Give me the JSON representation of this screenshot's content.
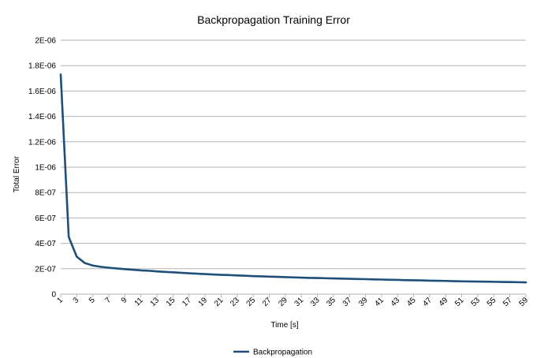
{
  "chart_data": {
    "type": "line",
    "title": "Backpropagation Training Error",
    "xlabel": "Time [s]",
    "ylabel": "Total Error",
    "x": [
      1,
      2,
      3,
      4,
      5,
      6,
      7,
      8,
      9,
      10,
      11,
      12,
      13,
      14,
      15,
      16,
      17,
      18,
      19,
      20,
      21,
      22,
      23,
      24,
      25,
      26,
      27,
      28,
      29,
      30,
      31,
      32,
      33,
      34,
      35,
      36,
      37,
      38,
      39,
      40,
      41,
      42,
      43,
      44,
      45,
      46,
      47,
      48,
      49,
      50,
      51,
      52,
      53,
      54,
      55,
      56,
      57,
      58,
      59
    ],
    "x_tick_labels": [
      "1",
      "3",
      "5",
      "7",
      "9",
      "11",
      "13",
      "15",
      "17",
      "19",
      "21",
      "23",
      "25",
      "27",
      "29",
      "31",
      "33",
      "35",
      "37",
      "39",
      "41",
      "43",
      "45",
      "47",
      "49",
      "51",
      "53",
      "55",
      "57",
      "59"
    ],
    "y_tick_values": [
      0,
      2e-07,
      4e-07,
      6e-07,
      8e-07,
      1e-06,
      1.2e-06,
      1.4e-06,
      1.6e-06,
      1.8e-06,
      2e-06
    ],
    "y_tick_labels": [
      "0",
      "2E-07",
      "4E-07",
      "6E-07",
      "8E-07",
      "1E-06",
      "1.2E-06",
      "1.4E-06",
      "1.6E-06",
      "1.8E-06",
      "2E-06"
    ],
    "ylim": [
      0,
      2e-06
    ],
    "grid": true,
    "legend_position": "bottom",
    "series": [
      {
        "name": "Backpropagation",
        "color": "#1f4e79",
        "values": [
          1.73e-06,
          4.5e-07,
          2.95e-07,
          2.45e-07,
          2.25e-07,
          2.15e-07,
          2.08e-07,
          2.02e-07,
          1.97e-07,
          1.92e-07,
          1.87e-07,
          1.84e-07,
          1.79e-07,
          1.75e-07,
          1.72e-07,
          1.68e-07,
          1.64e-07,
          1.61e-07,
          1.58e-07,
          1.55e-07,
          1.52e-07,
          1.5e-07,
          1.47e-07,
          1.45e-07,
          1.42e-07,
          1.4e-07,
          1.38e-07,
          1.36e-07,
          1.34e-07,
          1.32e-07,
          1.3e-07,
          1.28e-07,
          1.27e-07,
          1.25e-07,
          1.24e-07,
          1.22e-07,
          1.21e-07,
          1.19e-07,
          1.18e-07,
          1.16e-07,
          1.15e-07,
          1.13e-07,
          1.12e-07,
          1.1e-07,
          1.09e-07,
          1.08e-07,
          1.06e-07,
          1.05e-07,
          1.04e-07,
          1.02e-07,
          1.01e-07,
          1e-07,
          9.9e-08,
          9.8e-08,
          9.7e-08,
          9.6e-08,
          9.5e-08,
          9.4e-08,
          9.3e-08
        ]
      }
    ]
  }
}
